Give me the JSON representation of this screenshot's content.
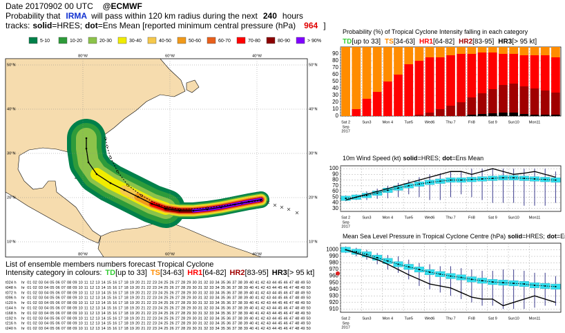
{
  "header": {
    "date": "Date 20170902 00 UTC",
    "org": "@ECMWF",
    "prob_prefix": "Probability that",
    "storm": "IRMA",
    "prob_mid": "will pass within 120 km radius during the next",
    "hours": "240",
    "prob_suffix": "hours",
    "tracks": "tracks:",
    "solid": "solid",
    "solid_label": "=HRES;",
    "dot": "dot",
    "dot_label": "=Ens Mean [reported minimum central pressure (hPa)",
    "pressure": 964,
    "close": "]"
  },
  "map": {
    "legend": [
      {
        "label": "5-10",
        "color": "#00804a"
      },
      {
        "label": "10-20",
        "color": "#2e9b3a"
      },
      {
        "label": "20-30",
        "color": "#8cc34a"
      },
      {
        "label": "30-40",
        "color": "#f0ec00"
      },
      {
        "label": "40-50",
        "color": "#f5c84b"
      },
      {
        "label": "50-60",
        "color": "#f09a1a"
      },
      {
        "label": "60-70",
        "color": "#e8601c"
      },
      {
        "label": "70-80",
        "color": "#ff0000"
      },
      {
        "label": "80-90",
        "color": "#8b0000"
      },
      {
        "label": "> 90%",
        "color": "#8000ff"
      }
    ],
    "lon_ticks": [
      {
        "value": -80,
        "label": "80°W"
      },
      {
        "value": -60,
        "label": "60°W"
      },
      {
        "value": -40,
        "label": "40°W"
      }
    ],
    "lat_ticks": [
      {
        "value": 50,
        "label": "50°N"
      },
      {
        "value": 40,
        "label": "40°N"
      },
      {
        "value": 30,
        "label": "30°N"
      },
      {
        "value": 20,
        "label": "20°N"
      },
      {
        "value": 10,
        "label": "10°N"
      }
    ]
  },
  "chart_data": [
    {
      "type": "stacked_bar",
      "title": "Probability (%) of Tropical Cyclone Intensity falling in each category",
      "categories": [
        "Sat 2",
        null,
        "Sun3",
        null,
        "Mon 4",
        null,
        "Tue5",
        null,
        "Wed6",
        null,
        "Thu 7",
        null,
        "Fri8",
        null,
        "Sat 9",
        null,
        "Sun10",
        null,
        "Mon11",
        null,
        null
      ],
      "x_sublabels": [
        "Sep",
        "2017"
      ],
      "sunday_color": "#d00000",
      "ylim": [
        0,
        100
      ],
      "yticks": [
        0,
        10,
        20,
        30,
        40,
        50,
        60,
        70,
        80,
        90
      ],
      "grid": true,
      "series": [
        {
          "name": "TD",
          "range": "[up to 33]",
          "color": "#33cc33",
          "values": [
            0,
            0,
            0,
            0,
            0,
            0,
            0,
            0,
            0,
            0,
            0,
            0,
            0,
            0,
            0,
            0,
            0,
            0,
            0,
            0,
            0
          ]
        },
        {
          "name": "TS",
          "range": "[34-63]",
          "color": "#ff8c00",
          "values": [
            100,
            90,
            75,
            65,
            50,
            40,
            25,
            20,
            15,
            15,
            12,
            10,
            10,
            8,
            8,
            10,
            10,
            12,
            12,
            12,
            15
          ]
        },
        {
          "name": "HR1",
          "range": "[64-82]",
          "color": "#ff0000",
          "values": [
            0,
            10,
            25,
            35,
            50,
            60,
            75,
            78,
            80,
            75,
            73,
            70,
            63,
            59,
            53,
            45,
            43,
            45,
            48,
            51,
            51
          ]
        },
        {
          "name": "HR2",
          "range": "[83-95]",
          "color": "#a00000",
          "values": [
            0,
            0,
            0,
            0,
            0,
            0,
            0,
            2,
            5,
            10,
            15,
            20,
            25,
            30,
            35,
            40,
            42,
            40,
            38,
            35,
            32
          ]
        },
        {
          "name": "HR3",
          "range": "[> 95 kt]",
          "color": "#000000",
          "values": [
            0,
            0,
            0,
            0,
            0,
            0,
            0,
            0,
            0,
            0,
            0,
            0,
            2,
            3,
            4,
            5,
            5,
            3,
            2,
            2,
            2
          ]
        }
      ]
    },
    {
      "type": "box_line",
      "title": "10m Wind Speed (kt)",
      "solid": "solid",
      "solid_label": "=HRES;",
      "dot": "dot",
      "dot_label": "=Ens Mean",
      "categories": [
        "Sat 2",
        null,
        "Sun3",
        null,
        "Mon 4",
        null,
        "Tue5",
        null,
        "Wed6",
        null,
        "Thu 7",
        null,
        "Fri8",
        null,
        "Sat 9",
        null,
        "Sun10",
        null,
        "Mon11",
        null,
        null
      ],
      "x_sublabels": [
        "Sep",
        "2017"
      ],
      "sunday_color": "#d00000",
      "ylim": [
        25,
        105
      ],
      "yticks": [
        30,
        40,
        50,
        60,
        70,
        80,
        90,
        100
      ],
      "grid": true,
      "box": {
        "color": "#33e0f0",
        "whisker_color": "#3a3a8c",
        "q1": [
          44,
          46,
          49,
          53,
          58,
          62,
          66,
          69,
          72,
          74,
          76,
          76,
          77,
          78,
          79,
          80,
          80,
          79,
          78,
          77,
          76
        ],
        "q3": [
          52,
          54,
          57,
          61,
          66,
          70,
          74,
          77,
          80,
          82,
          84,
          84,
          85,
          86,
          87,
          88,
          88,
          87,
          86,
          85,
          84
        ],
        "min": [
          43,
          45,
          45,
          47,
          48,
          50,
          55,
          50,
          45,
          45,
          50,
          55,
          50,
          45,
          40,
          40,
          40,
          35,
          35,
          35,
          40
        ],
        "max": [
          53,
          55,
          60,
          65,
          70,
          75,
          80,
          85,
          90,
          92,
          95,
          95,
          100,
          100,
          100,
          100,
          100,
          100,
          100,
          100,
          95
        ]
      },
      "series": [
        {
          "name": "HRES",
          "style": "solid",
          "color": "#000000",
          "values": [
            45,
            50,
            55,
            60,
            65,
            70,
            75,
            80,
            85,
            90,
            95,
            95,
            90,
            95,
            100,
            95,
            90,
            92,
            95,
            90,
            85
          ]
        },
        {
          "name": "Ens Mean",
          "style": "dot",
          "color": "#000000",
          "values": [
            48,
            50,
            53,
            57,
            62,
            66,
            70,
            73,
            76,
            78,
            80,
            80,
            81,
            82,
            83,
            84,
            84,
            83,
            82,
            81,
            80
          ]
        }
      ]
    },
    {
      "type": "box_line",
      "title": "Mean Sea Level Pressure in Tropical Cyclone Centre (hPa)",
      "solid": "solid",
      "solid_label": "=HRES;",
      "dot": "dot",
      "dot_label": "=Ens Mean",
      "categories": [
        "Sat 2",
        null,
        "Sun3",
        null,
        "Mon 4",
        null,
        "Tue5",
        null,
        "Wed6",
        null,
        "Thu 7",
        null,
        "Fri8",
        null,
        "Sat 9",
        null,
        "Sun10",
        null,
        "Mon11",
        null,
        null
      ],
      "x_sublabels": [
        "Sep",
        "2017"
      ],
      "sunday_color": "#d00000",
      "ylim": [
        905,
        1010
      ],
      "yticks": [
        910,
        920,
        930,
        940,
        950,
        960,
        970,
        980,
        990,
        1000
      ],
      "grid": true,
      "observed_color": "#e02020",
      "box": {
        "color": "#33e0f0",
        "whisker_color": "#3a3a8c",
        "q1": [
          996,
          993,
          989,
          984,
          979,
          974,
          970,
          966,
          962,
          959,
          956,
          954,
          951,
          949,
          947,
          946,
          945,
          944,
          942,
          941,
          940
        ],
        "q3": [
          1004,
          1001,
          997,
          992,
          987,
          982,
          978,
          974,
          970,
          967,
          964,
          962,
          959,
          957,
          955,
          954,
          953,
          952,
          950,
          949,
          948
        ],
        "min": [
          995,
          990,
          985,
          978,
          970,
          965,
          955,
          945,
          940,
          935,
          930,
          925,
          920,
          915,
          915,
          910,
          910,
          910,
          912,
          915,
          915
        ],
        "max": [
          1005,
          1003,
          1000,
          995,
          992,
          990,
          985,
          980,
          978,
          975,
          975,
          972,
          970,
          968,
          968,
          970,
          970,
          968,
          965,
          965,
          960
        ]
      },
      "series": [
        {
          "name": "HRES",
          "style": "solid",
          "color": "#000000",
          "values": [
            1000,
            995,
            990,
            985,
            978,
            970,
            962,
            955,
            948,
            945,
            942,
            935,
            928,
            925,
            925,
            915,
            920,
            925,
            930,
            925,
            920
          ]
        },
        {
          "name": "Ens Mean",
          "style": "dot",
          "color": "#000000",
          "values": [
            1000,
            997,
            993,
            988,
            983,
            978,
            974,
            970,
            966,
            963,
            960,
            958,
            955,
            953,
            951,
            950,
            949,
            948,
            946,
            945,
            944
          ]
        }
      ]
    }
  ],
  "ensemble": {
    "title": "List of ensemble members numbers forecast Tropical Cyclone",
    "legend_prefix": "Intensity category in colours:",
    "members": [
      "hr",
      "01",
      "02",
      "03",
      "04",
      "05",
      "06",
      "07",
      "08",
      "09",
      "10",
      "11",
      "12",
      "13",
      "14",
      "15",
      "16",
      "17",
      "18",
      "19",
      "20",
      "21",
      "22",
      "23",
      "24",
      "25",
      "26",
      "27",
      "28",
      "29",
      "30",
      "31",
      "32",
      "33",
      "34",
      "35",
      "36",
      "37",
      "38",
      "39",
      "40",
      "41",
      "42",
      "43",
      "44",
      "45",
      "46",
      "47",
      "48",
      "49",
      "50"
    ],
    "rows": [
      {
        "label": "t024 h",
        "cats": "112112111211121121112111211121121112111211121112111"
      },
      {
        "label": "t048 h",
        "cats": "222122221222212222212122222122222122212222122222212"
      },
      {
        "label": "t072 h",
        "cats": "222222222222232222222222232222222222222322222222222"
      },
      {
        "label": "t096 h",
        "cats": "222322232222322232222322223222222322223222222322223"
      },
      {
        "label": "t120 h",
        "cats": "323322323223223232232232232232322322323223223223232"
      },
      {
        "label": "t144 h",
        "cats": "333233323332333233233323332333233323332333233323332"
      },
      {
        "label": "t168 h",
        "cats": "333334333333233343333333433323333333433333343333323"
      },
      {
        "label": "t192 h",
        "cats": "333233323333233323332333233323332333233333233333323"
      },
      {
        "label": "t216 h",
        "cats": "332232322322322322323223223232232232232322322322322"
      },
      {
        "label": "t240 h",
        "cats": "222322232222322232222322223222222322223222222322223"
      }
    ]
  }
}
